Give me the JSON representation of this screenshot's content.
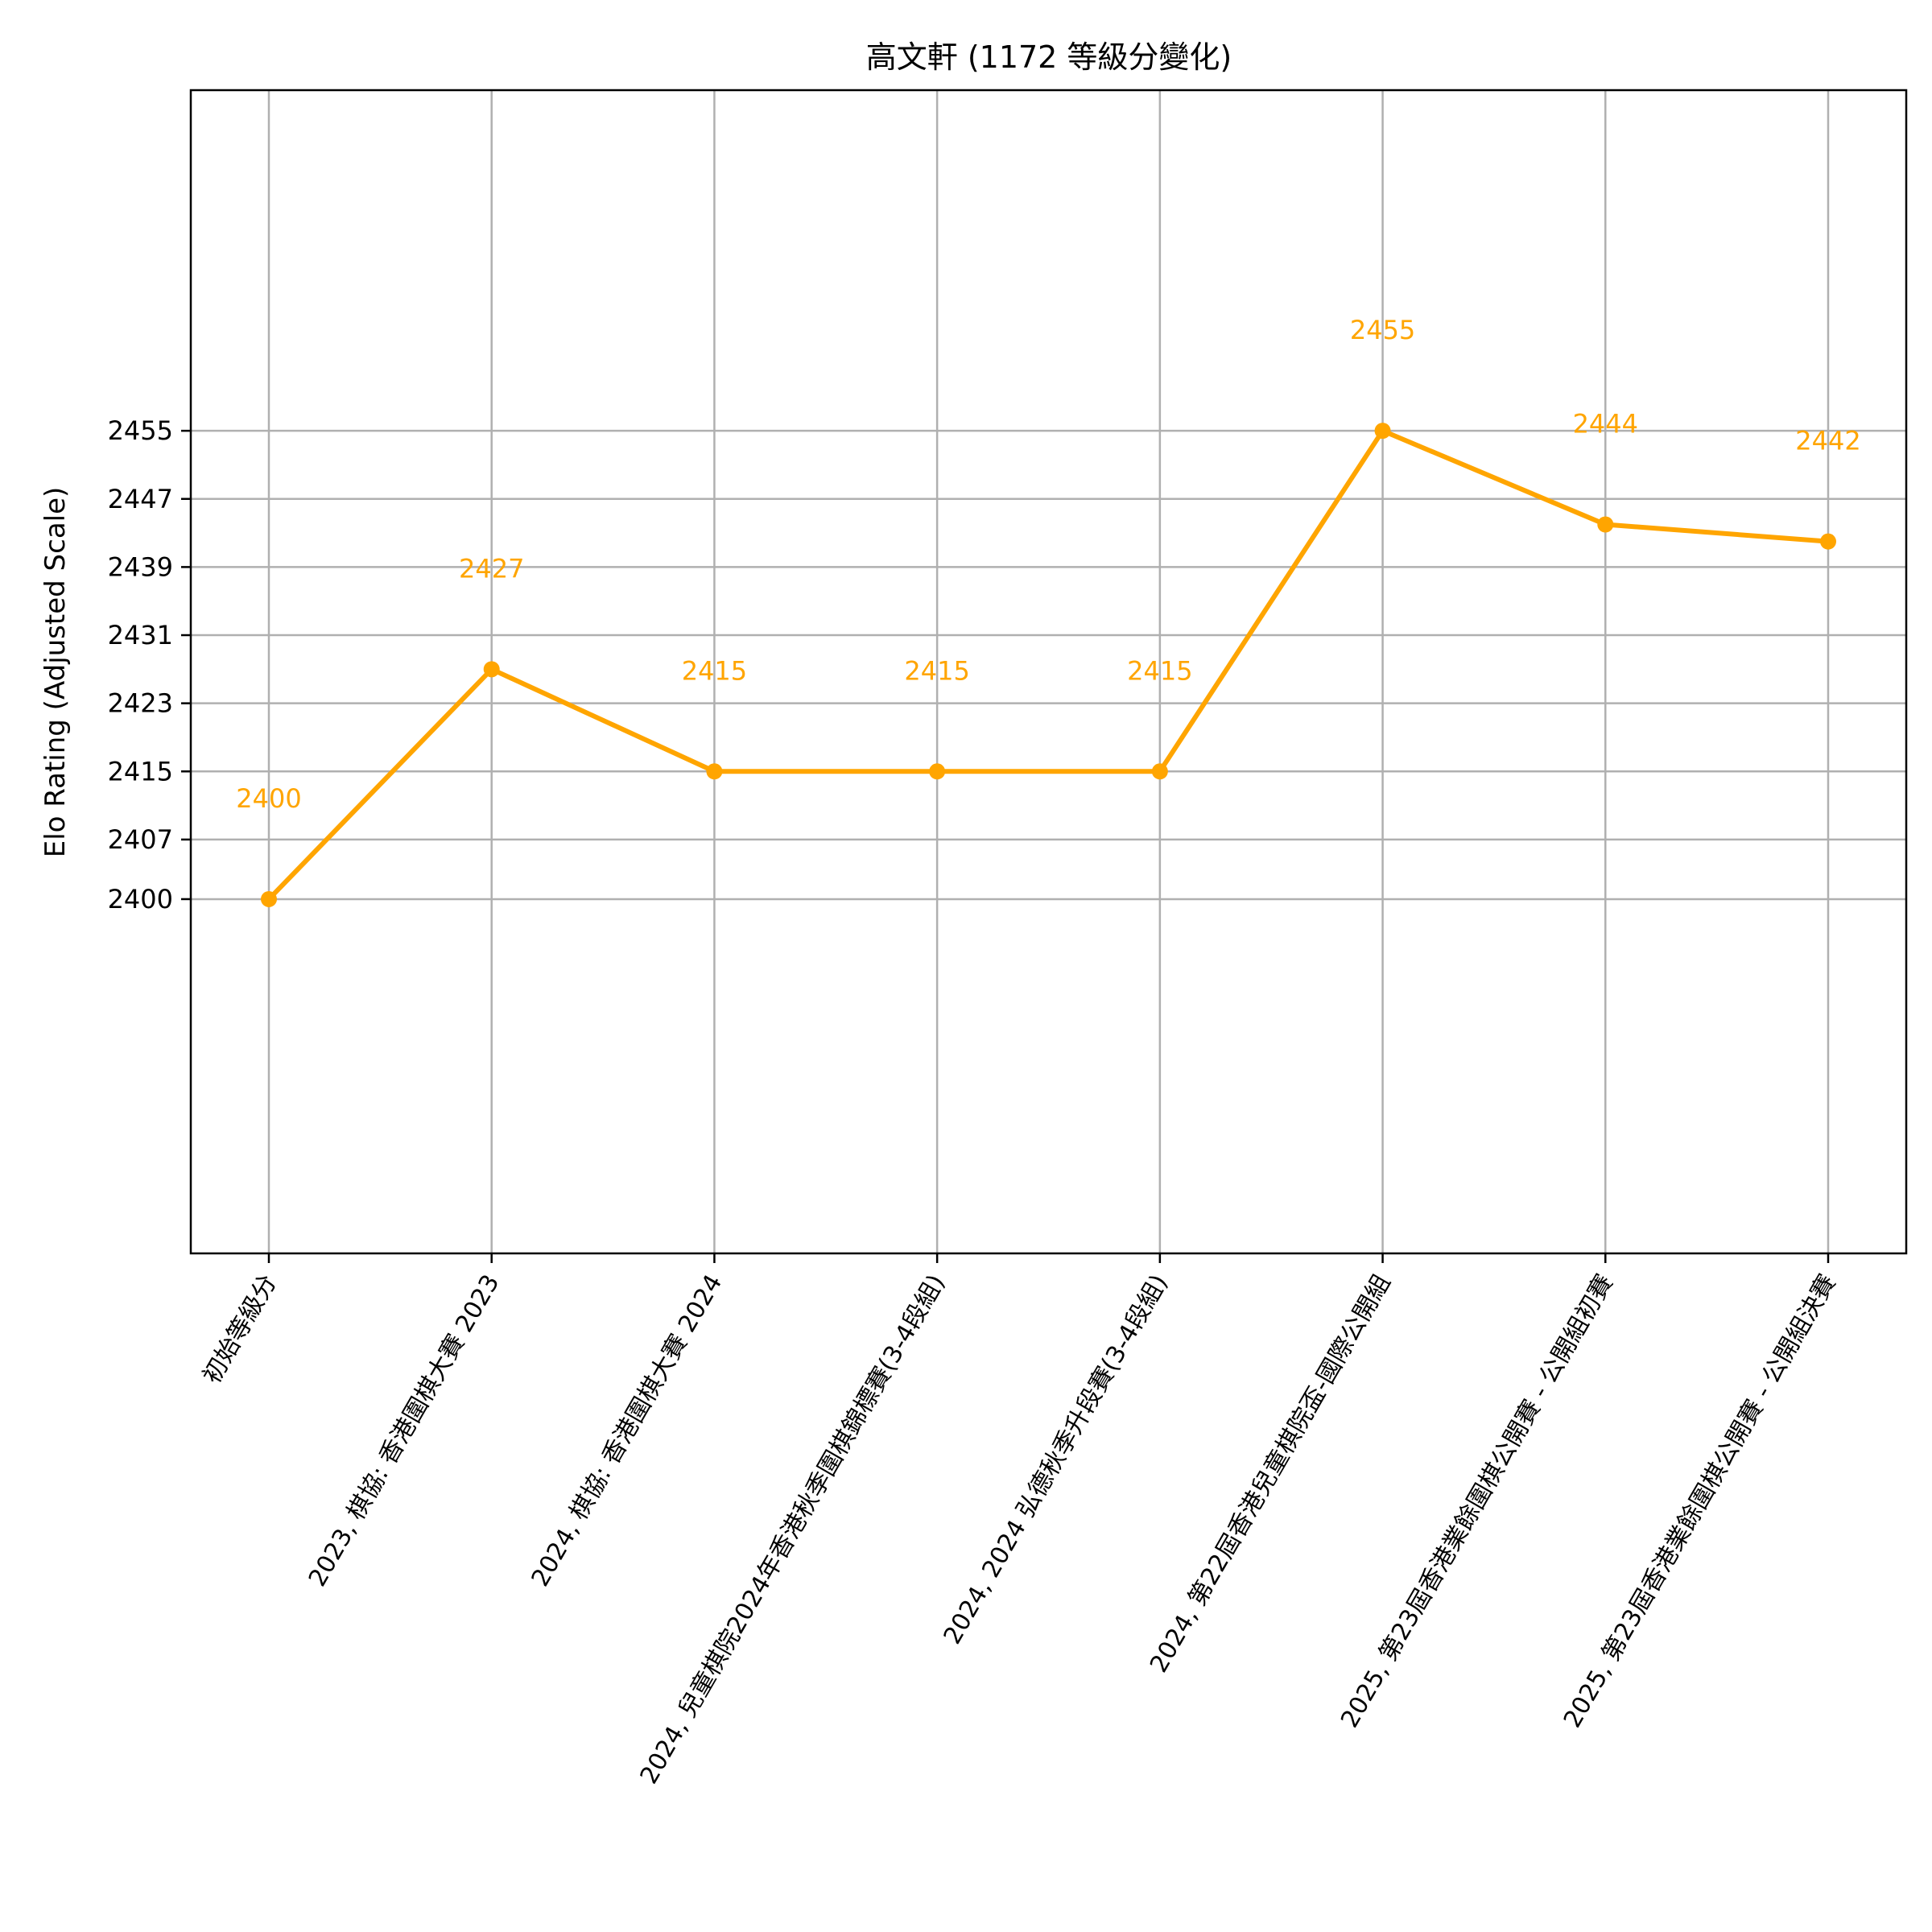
{
  "chart_data": {
    "type": "line",
    "title": "高文軒 (1172 等級分變化)",
    "xlabel": "",
    "ylabel": "Elo Rating (Adjusted Scale)",
    "categories": [
      "初始等級分",
      "2023, 棋協: 香港圍棋大賽 2023",
      "2024, 棋協: 香港圍棋大賽 2024",
      "2024, 兒童棋院2024年香港秋季圍棋錦標賽(3-4段組)",
      "2024, 2024 弘德秋季升段賽(3-4段組)",
      "2024, 第22屆香港兒童棋院盃-國際公開組",
      "2025, 第23屆香港業餘圍棋公開賽 - 公開組初賽",
      "2025, 第23屆香港業餘圍棋公開賽 - 公開組決賽"
    ],
    "values": [
      2400,
      2427,
      2415,
      2415,
      2415,
      2455,
      2444,
      2442
    ],
    "data_labels": [
      "2400",
      "2427",
      "2415",
      "2415",
      "2415",
      "2455",
      "2444",
      "2442"
    ],
    "yticks": [
      2400,
      2407,
      2415,
      2423,
      2431,
      2439,
      2447,
      2455
    ],
    "ytick_labels": [
      "2400",
      "2407",
      "2415",
      "2423",
      "2431",
      "2439",
      "2447",
      "2455"
    ],
    "ylim": [
      2358.4,
      2495
    ],
    "grid": true,
    "line_color": "#FFA500"
  }
}
